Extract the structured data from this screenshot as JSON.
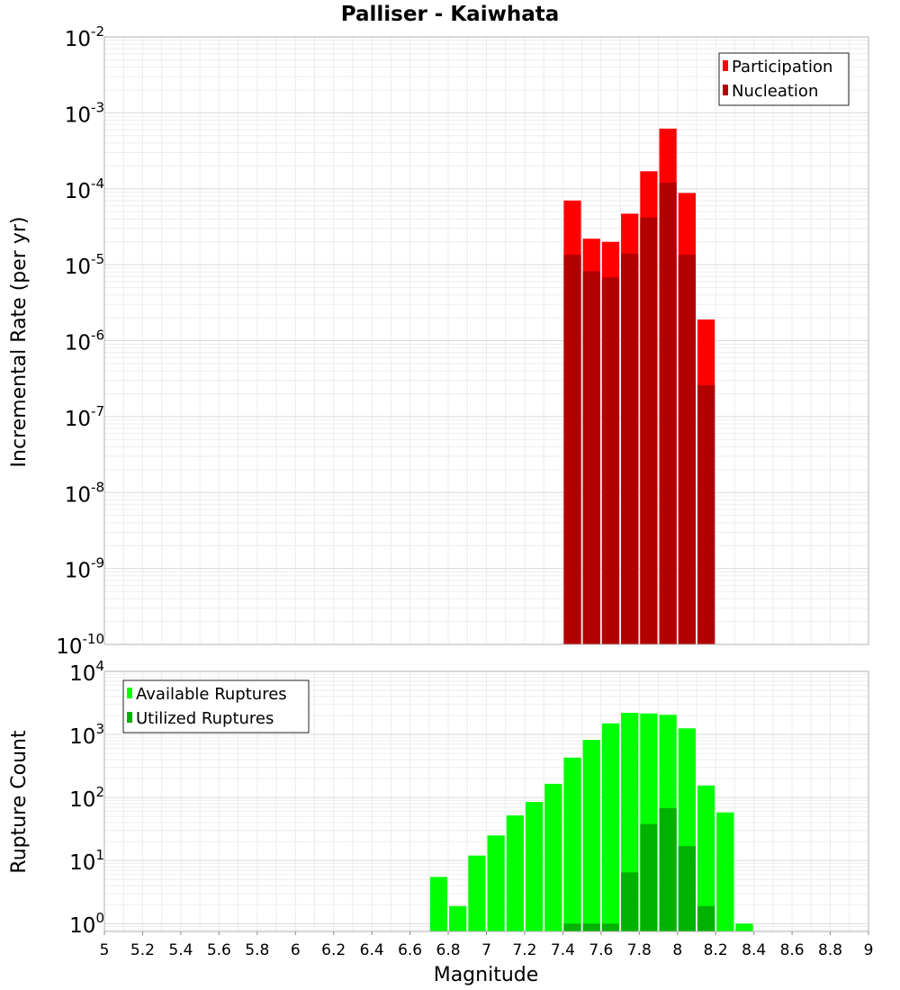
{
  "chart_data": [
    {
      "type": "bar",
      "title": "Palliser - Kaiwhata",
      "ylabel": "Incremental Rate (per yr)",
      "yscale": "log",
      "ylim": [
        1e-10,
        0.01
      ],
      "xlim": [
        5,
        9
      ],
      "grid": true,
      "legend_placement": "top-right",
      "y_tick_labels": [
        {
          "base": "10",
          "exp": "-10",
          "value": 1e-10
        },
        {
          "base": "10",
          "exp": "-9",
          "value": 1e-09
        },
        {
          "base": "10",
          "exp": "-8",
          "value": 1e-08
        },
        {
          "base": "10",
          "exp": "-7",
          "value": 1e-07
        },
        {
          "base": "10",
          "exp": "-6",
          "value": 1e-06
        },
        {
          "base": "10",
          "exp": "-5",
          "value": 1e-05
        },
        {
          "base": "10",
          "exp": "-4",
          "value": 0.0001
        },
        {
          "base": "10",
          "exp": "-3",
          "value": 0.001
        },
        {
          "base": "10",
          "exp": "-2",
          "value": 0.01
        }
      ],
      "bin_width": 0.1,
      "series": [
        {
          "name": "Participation",
          "color": "#ff0000",
          "points": [
            {
              "x": 7.45,
              "y": 7e-05
            },
            {
              "x": 7.55,
              "y": 2.2e-05
            },
            {
              "x": 7.65,
              "y": 2e-05
            },
            {
              "x": 7.75,
              "y": 4.7e-05
            },
            {
              "x": 7.85,
              "y": 0.00017
            },
            {
              "x": 7.95,
              "y": 0.00062
            },
            {
              "x": 8.05,
              "y": 8.8e-05
            },
            {
              "x": 8.15,
              "y": 1.9e-06
            }
          ]
        },
        {
          "name": "Nucleation",
          "color": "#b20000",
          "points": [
            {
              "x": 7.45,
              "y": 1.35e-05
            },
            {
              "x": 7.55,
              "y": 8.2e-06
            },
            {
              "x": 7.65,
              "y": 6.8e-06
            },
            {
              "x": 7.75,
              "y": 1.4e-05
            },
            {
              "x": 7.85,
              "y": 4.2e-05
            },
            {
              "x": 7.95,
              "y": 0.00012
            },
            {
              "x": 8.05,
              "y": 1.35e-05
            },
            {
              "x": 8.15,
              "y": 2.6e-07
            }
          ]
        }
      ]
    },
    {
      "type": "bar",
      "xlabel": "Magnitude",
      "ylabel": "Rupture Count",
      "yscale": "log",
      "ylim": [
        0.75,
        10000
      ],
      "xlim": [
        5,
        9
      ],
      "grid": true,
      "legend_placement": "top-left",
      "x_tick_labels": [
        "5",
        "5.2",
        "5.4",
        "5.6",
        "5.8",
        "6",
        "6.2",
        "6.4",
        "6.6",
        "6.8",
        "7",
        "7.2",
        "7.4",
        "7.6",
        "7.8",
        "8",
        "8.2",
        "8.4",
        "8.6",
        "8.8",
        "9"
      ],
      "y_tick_labels": [
        {
          "base": "10",
          "exp": "0",
          "value": 1
        },
        {
          "base": "10",
          "exp": "1",
          "value": 10
        },
        {
          "base": "10",
          "exp": "2",
          "value": 100
        },
        {
          "base": "10",
          "exp": "3",
          "value": 1000
        },
        {
          "base": "10",
          "exp": "4",
          "value": 10000
        }
      ],
      "bin_width": 0.1,
      "series": [
        {
          "name": "Available Ruptures",
          "color": "#00ff00",
          "points": [
            {
              "x": 6.75,
              "y": 5.5
            },
            {
              "x": 6.85,
              "y": 1.9
            },
            {
              "x": 6.95,
              "y": 12
            },
            {
              "x": 7.05,
              "y": 25
            },
            {
              "x": 7.15,
              "y": 52
            },
            {
              "x": 7.25,
              "y": 85
            },
            {
              "x": 7.35,
              "y": 165
            },
            {
              "x": 7.45,
              "y": 430
            },
            {
              "x": 7.55,
              "y": 820
            },
            {
              "x": 7.65,
              "y": 1500
            },
            {
              "x": 7.75,
              "y": 2200
            },
            {
              "x": 7.85,
              "y": 2150
            },
            {
              "x": 7.95,
              "y": 2050
            },
            {
              "x": 8.05,
              "y": 1250
            },
            {
              "x": 8.15,
              "y": 155
            },
            {
              "x": 8.25,
              "y": 58
            },
            {
              "x": 8.35,
              "y": 1
            }
          ]
        },
        {
          "name": "Utilized Ruptures",
          "color": "#00b200",
          "points": [
            {
              "x": 7.45,
              "y": 1
            },
            {
              "x": 7.55,
              "y": 1
            },
            {
              "x": 7.65,
              "y": 1
            },
            {
              "x": 7.75,
              "y": 6.5
            },
            {
              "x": 7.85,
              "y": 38
            },
            {
              "x": 7.95,
              "y": 68
            },
            {
              "x": 8.05,
              "y": 17
            },
            {
              "x": 8.15,
              "y": 1.9
            }
          ]
        }
      ]
    }
  ]
}
